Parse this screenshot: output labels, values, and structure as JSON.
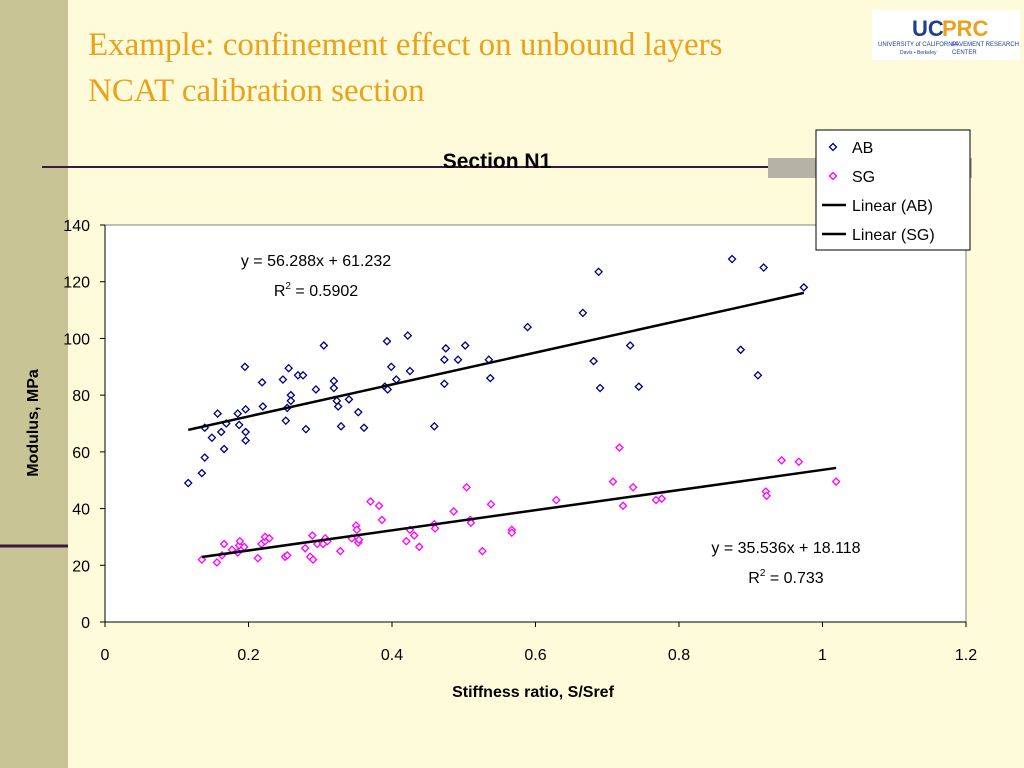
{
  "slide": {
    "title_lines": [
      "Example: confinement effect on unbound layers",
      "NCAT calibration section"
    ],
    "logo": {
      "uc": "UC",
      "prc": "PRC",
      "line1": "UNIVERSITY of CALIFORNIA",
      "line2": "PAVEMENT RESEARCH",
      "line3": "Davis • Berkeley",
      "line4": "CENTER"
    }
  },
  "chart_data": {
    "type": "scatter",
    "title": "Section N1",
    "x_label": "Stiffness ratio, S/Sref",
    "y_label": "Modulus, MPa",
    "xlim": [
      0,
      1.2
    ],
    "ylim": [
      0,
      140
    ],
    "xticks": [
      0,
      0.2,
      0.4,
      0.6,
      0.8,
      1,
      1.2
    ],
    "yticks": [
      0,
      20,
      40,
      60,
      80,
      100,
      120,
      140
    ],
    "grid": false,
    "legend": "top-right",
    "series": [
      {
        "name": "AB",
        "color": "#000080",
        "marker": "diamond",
        "x": [
          0.116,
          0.135,
          0.139,
          0.139,
          0.149,
          0.157,
          0.162,
          0.166,
          0.169,
          0.185,
          0.187,
          0.195,
          0.196,
          0.196,
          0.196,
          0.219,
          0.22,
          0.248,
          0.254,
          0.252,
          0.256,
          0.259,
          0.259,
          0.269,
          0.276,
          0.28,
          0.294,
          0.305,
          0.319,
          0.319,
          0.323,
          0.325,
          0.329,
          0.34,
          0.353,
          0.361,
          0.39,
          0.393,
          0.394,
          0.399,
          0.406,
          0.422,
          0.425,
          0.459,
          0.473,
          0.473,
          0.475,
          0.492,
          0.502,
          0.535,
          0.537,
          0.589,
          0.666,
          0.681,
          0.688,
          0.69,
          0.732,
          0.744,
          0.874,
          0.886,
          0.91,
          0.918,
          0.974
        ],
        "values": [
          49,
          52.5,
          58,
          68.5,
          65,
          73.5,
          67,
          61,
          70,
          73.5,
          69.5,
          90,
          75,
          67,
          64,
          84.5,
          76,
          85.5,
          75.5,
          71,
          89.5,
          80,
          78,
          87,
          87,
          68,
          82,
          97.5,
          85,
          82.5,
          78,
          76,
          69,
          78.5,
          74,
          68.5,
          83,
          99,
          82,
          90,
          85.5,
          101,
          88.5,
          69,
          84,
          92.5,
          96.5,
          92.5,
          97.5,
          92.5,
          86,
          104,
          109,
          92,
          123.5,
          82.5,
          97.5,
          83,
          128,
          96,
          87,
          125,
          118
        ],
        "trendline": {
          "name": "Linear (AB)",
          "slope": 56.288,
          "intercept": 61.232,
          "equation": "y = 56.288x + 61.232",
          "r2": {
            "symbol": "R",
            "power": "2",
            "text": " = 0.5902"
          }
        }
      },
      {
        "name": "SG",
        "color": "#ff00ff",
        "marker": "diamond",
        "x": [
          0.135,
          0.156,
          0.163,
          0.166,
          0.177,
          0.185,
          0.187,
          0.188,
          0.194,
          0.213,
          0.218,
          0.223,
          0.223,
          0.229,
          0.251,
          0.254,
          0.279,
          0.286,
          0.289,
          0.29,
          0.296,
          0.304,
          0.307,
          0.31,
          0.328,
          0.344,
          0.35,
          0.351,
          0.353,
          0.354,
          0.37,
          0.382,
          0.386,
          0.42,
          0.425,
          0.431,
          0.438,
          0.459,
          0.46,
          0.486,
          0.504,
          0.509,
          0.51,
          0.526,
          0.538,
          0.567,
          0.567,
          0.629,
          0.708,
          0.717,
          0.722,
          0.736,
          0.768,
          0.776,
          0.921,
          0.922,
          0.943,
          0.967,
          1.019
        ],
        "values": [
          22,
          21,
          23.5,
          27.5,
          25.5,
          24.5,
          27,
          28.5,
          26.5,
          22.5,
          27.5,
          28.5,
          30,
          29.5,
          23,
          23.5,
          26,
          23,
          30.5,
          22,
          27.5,
          27.5,
          29.5,
          28.5,
          25,
          29.5,
          34,
          32.5,
          28,
          29,
          42.5,
          41,
          36,
          28.5,
          32.5,
          30.5,
          26.5,
          34.5,
          33,
          39,
          47.5,
          36,
          35,
          25,
          41.5,
          32.5,
          31.5,
          43,
          49.5,
          61.5,
          41,
          47.5,
          43,
          43.5,
          46,
          44.5,
          57,
          56.5,
          49.5
        ],
        "trendline": {
          "name": "Linear (SG)",
          "slope": 35.536,
          "intercept": 18.118,
          "equation": "y = 35.536x + 18.118",
          "r2": {
            "symbol": "R",
            "power": "2",
            "text": " = 0.733"
          }
        }
      }
    ]
  }
}
